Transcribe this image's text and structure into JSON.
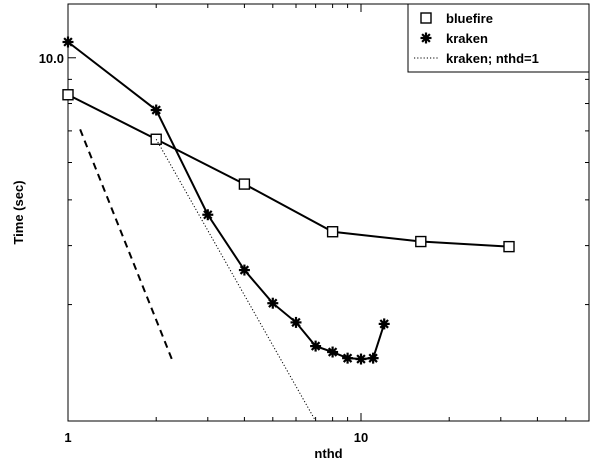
{
  "chart_data": {
    "type": "line",
    "xlabel": "nthd",
    "ylabel": "Time (sec)",
    "x_scale": "log",
    "y_scale": "log",
    "xlim": [
      1,
      60
    ],
    "ylim": [
      1.7,
      13
    ],
    "x_ticks": [
      1,
      10
    ],
    "x_tick_labels": [
      "1",
      "10"
    ],
    "y_ticks": [
      10
    ],
    "y_tick_labels": [
      "10.0"
    ],
    "y_minor_ticks": [
      3,
      4,
      5,
      6,
      7,
      8,
      9
    ],
    "grid": false,
    "legend_position": "top-right",
    "series": [
      {
        "name": "bluefire",
        "marker": "square",
        "line": "solid",
        "color": "#000000",
        "x": [
          1,
          2,
          4,
          8,
          16,
          32
        ],
        "y": [
          8.35,
          6.72,
          5.4,
          4.28,
          4.08,
          3.98
        ]
      },
      {
        "name": "kraken",
        "marker": "asterisk",
        "line": "solid",
        "color": "#000000",
        "x": [
          1,
          2,
          3,
          4,
          5,
          6,
          7,
          8,
          9,
          10,
          11,
          12
        ],
        "y": [
          10.8,
          7.75,
          4.65,
          3.55,
          3.02,
          2.75,
          2.45,
          2.38,
          2.31,
          2.3,
          2.31,
          2.73
        ]
      },
      {
        "name": "kraken; nthd=1",
        "marker": "none",
        "line": "dotted",
        "color": "#000000",
        "x": [
          2,
          7
        ],
        "y": [
          6.72,
          1.7
        ]
      },
      {
        "marker": "none",
        "line": "dashed",
        "color": "#000000",
        "x": [
          1.1,
          2.28
        ],
        "y": [
          7.05,
          2.27
        ]
      }
    ]
  }
}
